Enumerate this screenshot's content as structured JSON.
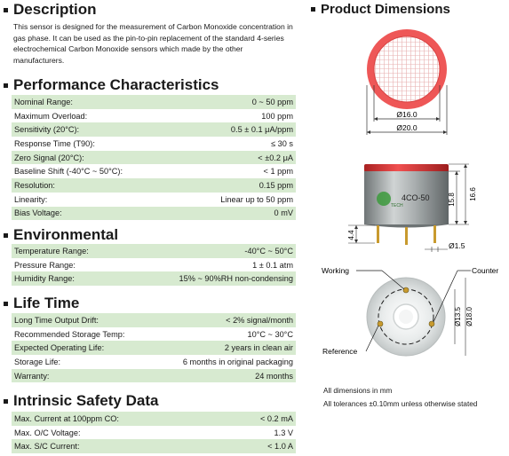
{
  "description": {
    "title": "Description",
    "text": "This sensor is designed for the measurement of Carbon Monoxide concentration in gas phase. It can be used as the pin-to-pin replacement of the standard 4-series electrochemical Carbon Monoxide sensors which made by the other manufacturers."
  },
  "performance": {
    "title": "Performance Characteristics",
    "rows": [
      {
        "label": "Nominal Range:",
        "value": "0 ~ 50 ppm"
      },
      {
        "label": "Maximum Overload:",
        "value": "100 ppm"
      },
      {
        "label": "Sensitivity (20°C):",
        "value": "0.5 ± 0.1 μA/ppm"
      },
      {
        "label": "Response Time (T90):",
        "value": "≤ 30 s"
      },
      {
        "label": "Zero Signal (20°C):",
        "value": "< ±0.2 μA"
      },
      {
        "label": "Baseline Shift (-40°C ~ 50°C):",
        "value": "< 1 ppm"
      },
      {
        "label": "Resolution:",
        "value": "0.15 ppm"
      },
      {
        "label": "Linearity:",
        "value": "Linear up to 50 ppm"
      },
      {
        "label": "Bias Voltage:",
        "value": "0 mV"
      }
    ]
  },
  "environmental": {
    "title": "Environmental",
    "rows": [
      {
        "label": "Temperature Range:",
        "value": "-40°C ~ 50°C"
      },
      {
        "label": "Pressure Range:",
        "value": "1 ± 0.1 atm"
      },
      {
        "label": "Humidity Range:",
        "value": "15% ~ 90%RH non-condensing"
      }
    ]
  },
  "life_time": {
    "title": "Life Time",
    "rows": [
      {
        "label": "Long Time Output Drift:",
        "value": "< 2% signal/month"
      },
      {
        "label": "Recommended Storage Temp:",
        "value": "10°C ~ 30°C"
      },
      {
        "label": "Expected Operating Life:",
        "value": "2 years in clean air"
      },
      {
        "label": "Storage Life:",
        "value": "6 months in original packaging"
      },
      {
        "label": "Warranty:",
        "value": "24 months"
      }
    ]
  },
  "safety": {
    "title": "Intrinsic Safety Data",
    "rows": [
      {
        "label": "Max. Current at 100ppm CO:",
        "value": "< 0.2 mA"
      },
      {
        "label": "Max. O/C Voltage:",
        "value": "1.3 V"
      },
      {
        "label": "Max. S/C Current:",
        "value": "< 1.0 A"
      }
    ]
  },
  "product_dimensions": {
    "title": "Product Dimensions",
    "dim_inner": "Ø16.0",
    "dim_outer": "Ø20.0",
    "dim_height_body": "15.8",
    "dim_height_total": "16.6",
    "dim_pin_length": "4.4",
    "dim_pin_dia": "Ø1.5",
    "model_label": "4CO-50",
    "brand_label": "TECH",
    "label_working": "Working",
    "label_counter": "Counter",
    "label_reference": "Reference",
    "dim_pin_circle": "Ø13.5",
    "dim_base": "Ø18.0",
    "note_units": "All dimensions in mm",
    "note_tolerance": "All tolerances ±0.10mm unless otherwise stated"
  },
  "colors": {
    "row_shade": "#d7ead0",
    "sensor_red": "#e23b3b",
    "body_gray": "#9ea3a4"
  }
}
